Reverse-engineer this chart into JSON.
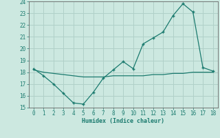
{
  "xlabel": "Humidex (Indice chaleur)",
  "x": [
    0,
    1,
    2,
    3,
    4,
    5,
    6,
    7,
    8,
    9,
    10,
    11,
    12,
    13,
    14,
    15,
    16,
    17,
    18
  ],
  "y_humidex": [
    18.3,
    17.7,
    17.0,
    16.2,
    15.4,
    15.3,
    16.3,
    17.5,
    18.2,
    18.9,
    18.3,
    20.4,
    20.9,
    21.4,
    22.8,
    23.8,
    23.1,
    18.4,
    18.1
  ],
  "y_baseline": [
    18.2,
    18.0,
    17.9,
    17.8,
    17.7,
    17.6,
    17.6,
    17.6,
    17.7,
    17.7,
    17.7,
    17.7,
    17.8,
    17.8,
    17.9,
    17.9,
    18.0,
    18.0,
    18.0
  ],
  "line_color": "#1a7a6e",
  "bg_color": "#cce8e0",
  "grid_color": "#b0d0c8",
  "text_color": "#1a7a6e",
  "ylim": [
    15,
    24
  ],
  "yticks": [
    15,
    16,
    17,
    18,
    19,
    20,
    21,
    22,
    23,
    24
  ],
  "xlim": [
    -0.5,
    18.5
  ],
  "xticks": [
    0,
    1,
    2,
    3,
    4,
    5,
    6,
    7,
    8,
    9,
    10,
    11,
    12,
    13,
    14,
    15,
    16,
    17,
    18
  ]
}
